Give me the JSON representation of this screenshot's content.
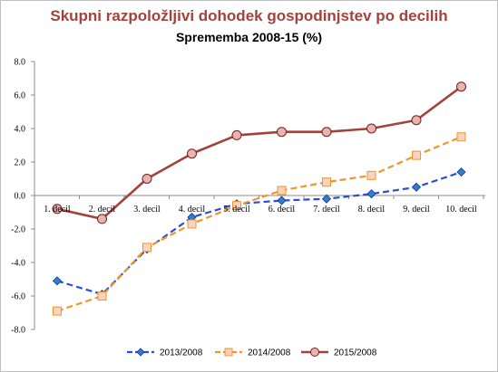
{
  "chart_data": {
    "type": "line",
    "title": "Skupni razpoložljivi dohodek gospodinjstev po decilih",
    "subtitle": "Sprememba 2008-15 (%)",
    "xlabel": "",
    "ylabel": "",
    "categories": [
      "1. decil",
      "2. decil",
      "3. decil",
      "4. decil",
      "5. decil",
      "6. decil",
      "7. decil",
      "8. decil",
      "9. decil",
      "10. decil"
    ],
    "y_ticks": [
      "8.0",
      "6.0",
      "4.0",
      "2.0",
      "0.0",
      "-2.0",
      "-4.0",
      "-6.0",
      "-8.0"
    ],
    "ylim": [
      -8,
      8
    ],
    "grid": false,
    "legend_position": "bottom",
    "series": [
      {
        "name": "2013/2008",
        "values": [
          -5.1,
          -5.9,
          -3.2,
          -1.3,
          -0.5,
          -0.3,
          -0.2,
          0.1,
          0.5,
          1.4
        ],
        "color": "#2a4fd6",
        "marker": "diamond",
        "line_style": "dashed"
      },
      {
        "name": "2014/2008",
        "values": [
          -6.9,
          -6.0,
          -3.1,
          -1.7,
          -0.6,
          0.3,
          0.8,
          1.2,
          2.4,
          3.5
        ],
        "color": "#f0952c",
        "marker": "square",
        "line_style": "dashed"
      },
      {
        "name": "2015/2008",
        "values": [
          -0.8,
          -1.4,
          1.0,
          2.5,
          3.6,
          3.8,
          3.8,
          4.0,
          4.5,
          6.5
        ],
        "color": "#a5413b",
        "marker": "circle",
        "line_style": "solid"
      }
    ]
  }
}
